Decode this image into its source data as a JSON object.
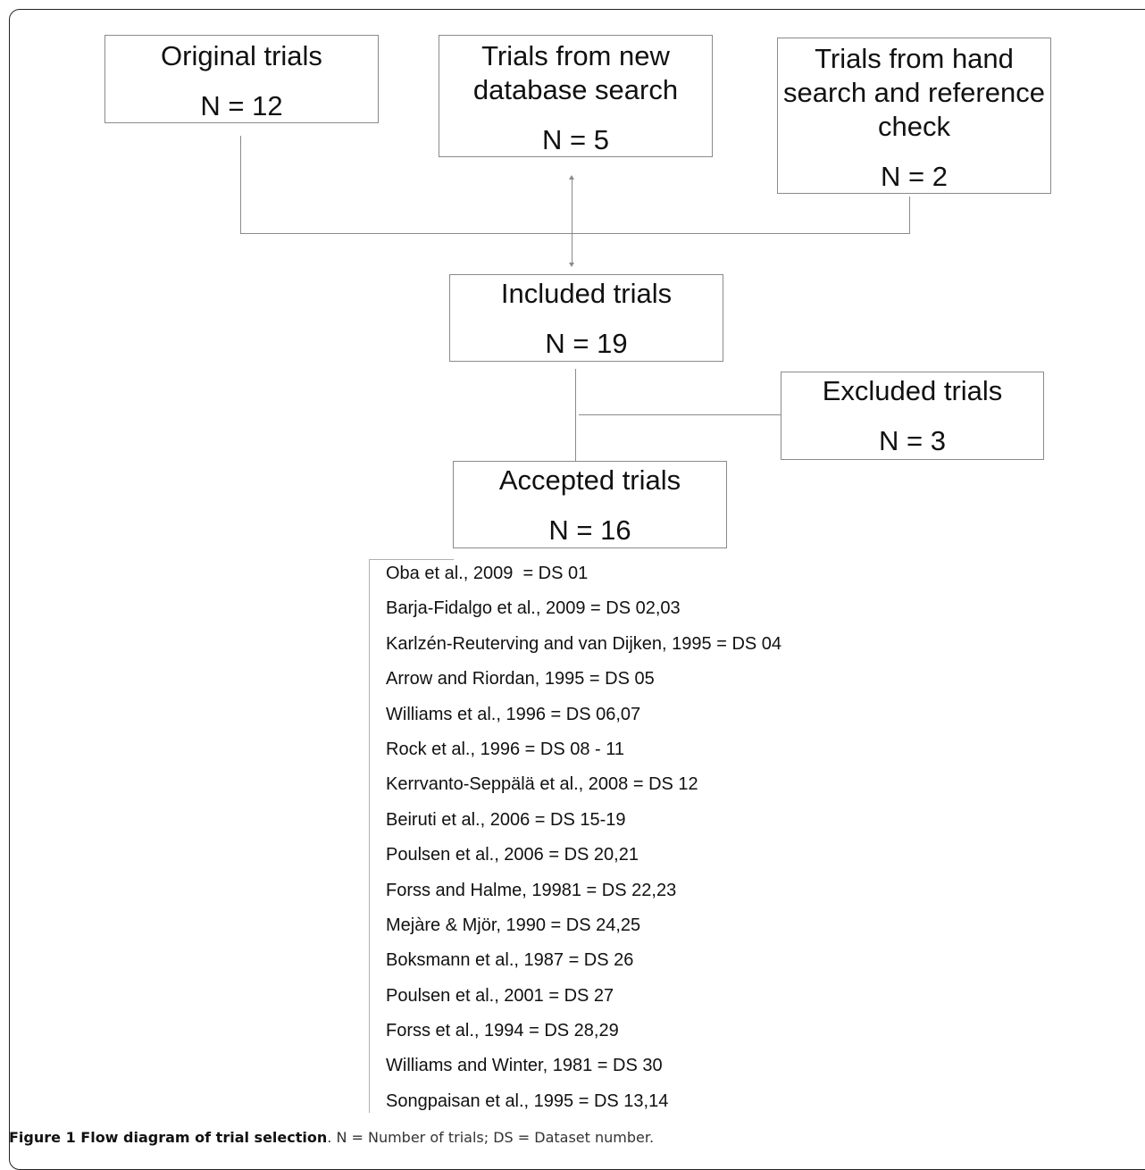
{
  "boxes": {
    "original": {
      "title": "Original trials",
      "count": "N = 12"
    },
    "new_search": {
      "title": "Trials from new\ndatabase search",
      "count": "N = 5"
    },
    "hand_search": {
      "title": "Trials from hand\nsearch and reference\ncheck",
      "count": "N = 2"
    },
    "included": {
      "title": "Included trials",
      "count": "N = 19"
    },
    "excluded": {
      "title": "Excluded trials",
      "count": "N = 3"
    },
    "accepted": {
      "title": "Accepted trials",
      "count": "N = 16"
    }
  },
  "studies": [
    "Oba et al., 2009  = DS 01",
    "Barja-Fidalgo et al., 2009 = DS 02,03",
    "Karlzén-Reuterving and van Dijken, 1995 = DS 04",
    "Arrow and Riordan, 1995 = DS 05",
    "Williams et al., 1996 = DS 06,07",
    "Rock et al., 1996 = DS 08 - 11",
    "Kerrvanto-Seppälä et al., 2008 = DS 12",
    "Beiruti et al., 2006 = DS 15-19",
    "Poulsen et al., 2006 = DS 20,21",
    "Forss and Halme, 19981 = DS 22,23",
    "Mejàre & Mjör, 1990 = DS 24,25",
    "Boksmann et al., 1987 = DS 26",
    "Poulsen et al., 2001 = DS 27",
    "Forss et al., 1994 = DS 28,29",
    "Williams and Winter, 1981 = DS 30",
    "Songpaisan et al., 1995 = DS 13,14"
  ],
  "caption": {
    "label": "Figure 1 Flow diagram of trial selection",
    "text": ". N = Number of trials; DS = Dataset number."
  }
}
